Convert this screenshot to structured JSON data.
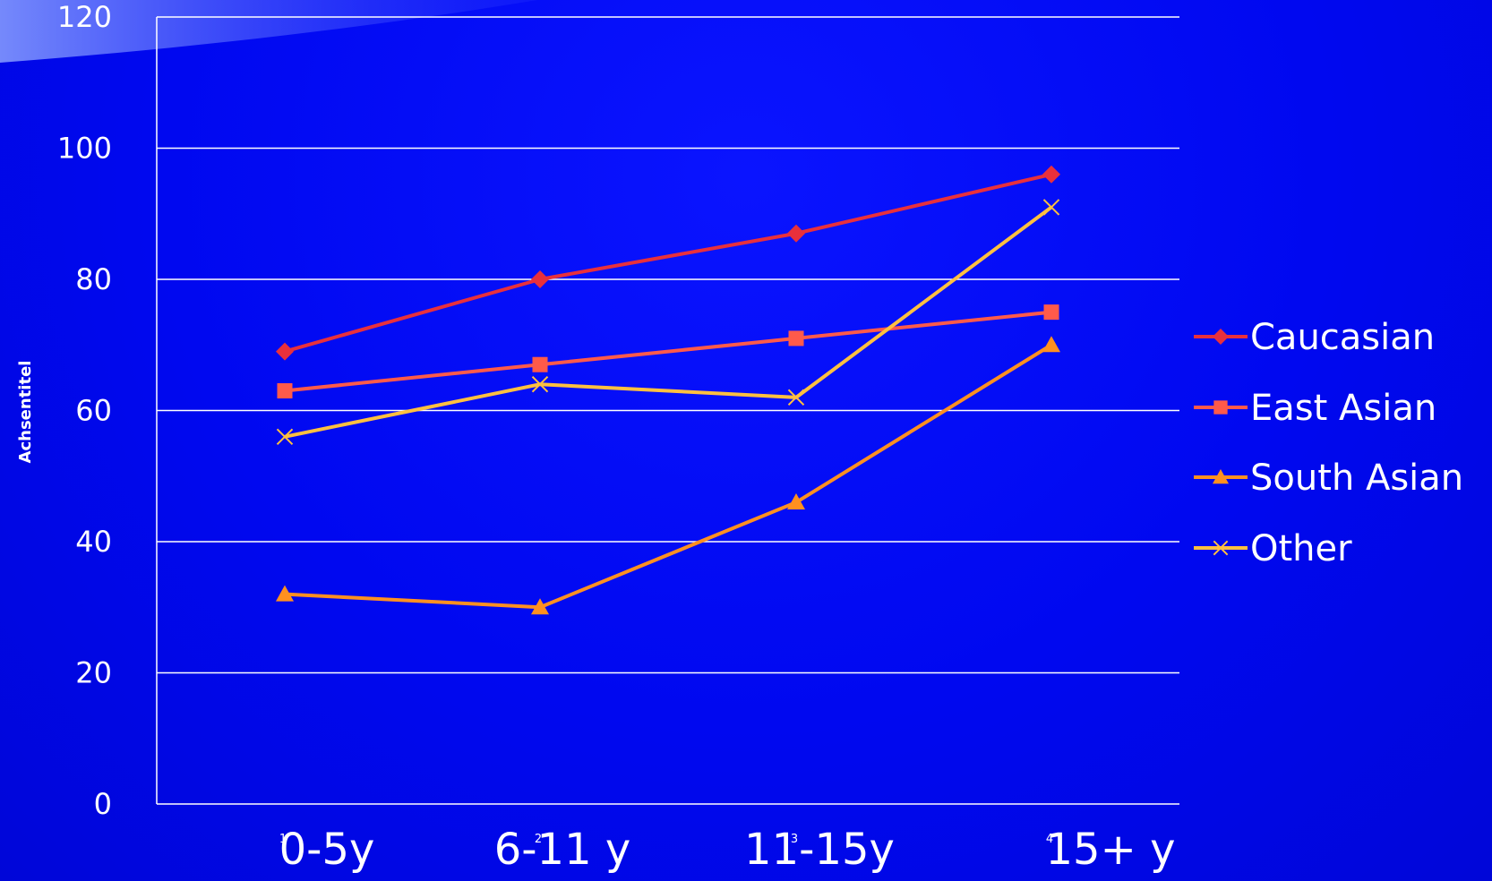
{
  "chart_data": {
    "type": "line",
    "ylabel": "Achsentitel",
    "ylim": [
      0,
      120
    ],
    "yticks": [
      0,
      20,
      40,
      60,
      80,
      100,
      120
    ],
    "x": [
      1,
      2,
      3,
      4
    ],
    "categories": [
      "0-5y",
      "6-11 y",
      "11-15y",
      "15+ y"
    ],
    "grid": true,
    "legend_position": "right",
    "series": [
      {
        "name": "Caucasian",
        "values": [
          69,
          80,
          87,
          96
        ],
        "color": "#e8303c",
        "marker": "diamond"
      },
      {
        "name": "East Asian",
        "values": [
          63,
          67,
          71,
          75
        ],
        "color": "#ff5a4a",
        "marker": "square"
      },
      {
        "name": "South Asian",
        "values": [
          32,
          30,
          46,
          70
        ],
        "color": "#ff9020",
        "marker": "triangle"
      },
      {
        "name": "Other",
        "values": [
          56,
          64,
          62,
          91
        ],
        "color": "#ffc040",
        "marker": "x"
      }
    ]
  }
}
